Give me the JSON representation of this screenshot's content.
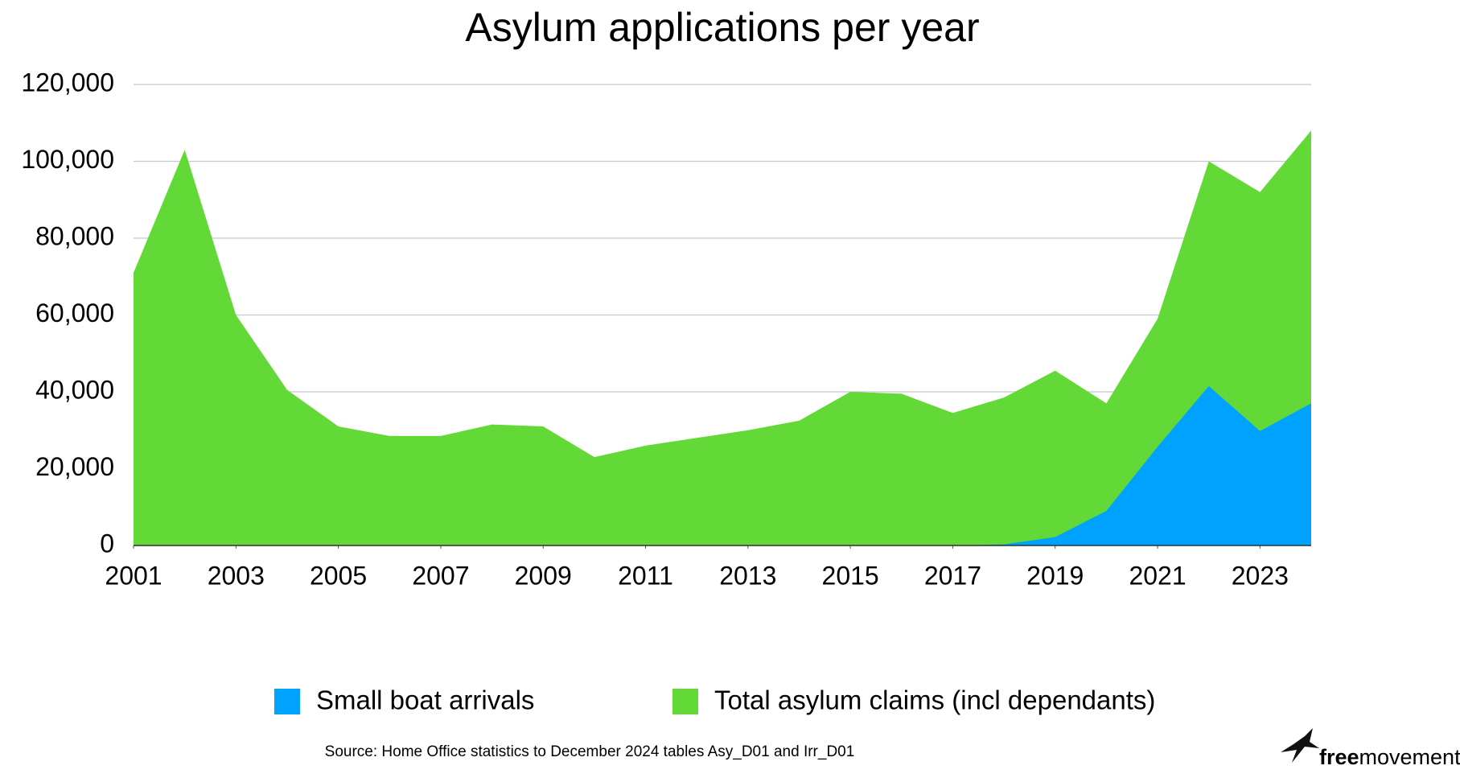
{
  "chart_data": {
    "type": "area",
    "title": "Asylum applications per year",
    "x": [
      2001,
      2002,
      2003,
      2004,
      2005,
      2006,
      2007,
      2008,
      2009,
      2010,
      2011,
      2012,
      2013,
      2014,
      2015,
      2016,
      2017,
      2018,
      2019,
      2020,
      2021,
      2022,
      2023,
      2024
    ],
    "series": [
      {
        "name": "Small boat arrivals",
        "color": "#00a2ff",
        "values": [
          0,
          0,
          0,
          0,
          0,
          0,
          0,
          0,
          0,
          0,
          0,
          0,
          0,
          0,
          0,
          0,
          0,
          300,
          2200,
          9000,
          25700,
          41500,
          29800,
          37000
        ]
      },
      {
        "name": "Total asylum claims (incl dependants)",
        "color": "#62d936",
        "values": [
          71000,
          103000,
          60000,
          40500,
          31000,
          28500,
          28500,
          31500,
          31000,
          23000,
          26000,
          28000,
          30000,
          32500,
          40000,
          39500,
          34500,
          38500,
          45500,
          37000,
          59000,
          100000,
          92000,
          108000
        ]
      }
    ],
    "xlim": [
      2001,
      2024
    ],
    "xticks": [
      2001,
      2003,
      2005,
      2007,
      2009,
      2011,
      2013,
      2015,
      2017,
      2019,
      2021,
      2023
    ],
    "ylim": [
      0,
      120000
    ],
    "yticks": [
      0,
      {
        "value": 20000,
        "label": "20,000"
      },
      {
        "value": 40000,
        "label": "40,000"
      },
      {
        "value": 60000,
        "label": "60,000"
      },
      {
        "value": 80000,
        "label": "80,000"
      },
      {
        "value": 100000,
        "label": "100,000"
      },
      {
        "value": 120000,
        "label": "120,000"
      }
    ],
    "grid": true,
    "legend": "bottom",
    "source": "Source: Home Office statistics to December 2024 tables Asy_D01 and Irr_D01",
    "logo": {
      "bold": "free",
      "regular": "movement"
    }
  }
}
